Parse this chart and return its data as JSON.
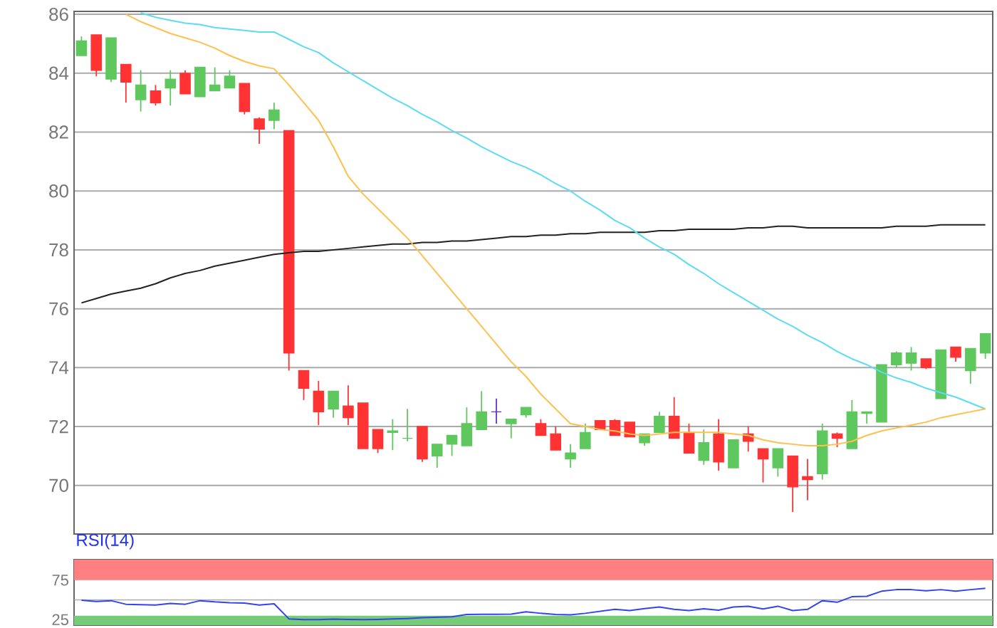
{
  "chart_data": [
    {
      "type": "candlestick",
      "categories": [
        null,
        null,
        null,
        null,
        null,
        null,
        null,
        null,
        null,
        null,
        null,
        null,
        null,
        null,
        null,
        null,
        null,
        null,
        null,
        null,
        null,
        null,
        null,
        null,
        null,
        null,
        null,
        null,
        null,
        null,
        null,
        null,
        null,
        null,
        null,
        null,
        null,
        null,
        null,
        null,
        null,
        null,
        null,
        null,
        null,
        null,
        null,
        null,
        null,
        null,
        null,
        null,
        null,
        null,
        null,
        null,
        null,
        null,
        null,
        null,
        null,
        null
      ],
      "ohlc": [
        [
          84.6,
          85.25,
          84.6,
          85.1
        ],
        [
          85.3,
          85.3,
          83.9,
          84.1
        ],
        [
          83.8,
          85.2,
          83.7,
          85.2
        ],
        [
          84.3,
          84.3,
          83.0,
          83.7
        ],
        [
          83.1,
          84.1,
          82.7,
          83.6
        ],
        [
          83.4,
          83.6,
          82.9,
          83.0
        ],
        [
          83.5,
          84.1,
          82.9,
          83.8
        ],
        [
          84.0,
          84.1,
          83.3,
          83.3
        ],
        [
          83.2,
          84.2,
          83.2,
          84.2
        ],
        [
          83.4,
          84.2,
          83.4,
          83.6
        ],
        [
          83.5,
          84.1,
          83.5,
          83.9
        ],
        [
          83.65,
          83.65,
          82.6,
          82.7
        ],
        [
          82.45,
          82.5,
          81.6,
          82.1
        ],
        [
          82.4,
          83.0,
          82.1,
          82.75
        ],
        [
          82.05,
          82.05,
          73.9,
          74.5
        ],
        [
          73.9,
          73.9,
          72.9,
          73.3
        ],
        [
          73.2,
          73.55,
          72.05,
          72.5
        ],
        [
          72.6,
          73.2,
          72.3,
          73.2
        ],
        [
          72.7,
          73.4,
          72.05,
          72.3
        ],
        [
          72.8,
          72.8,
          71.25,
          71.25
        ],
        [
          71.9,
          71.9,
          71.1,
          71.25
        ],
        [
          71.8,
          72.25,
          71.2,
          71.85
        ],
        [
          71.6,
          72.6,
          71.5,
          71.6
        ],
        [
          72.0,
          72.0,
          70.8,
          70.9
        ],
        [
          71.0,
          71.4,
          70.6,
          71.4
        ],
        [
          71.4,
          71.7,
          71.0,
          71.7
        ],
        [
          71.35,
          72.65,
          71.35,
          72.1
        ],
        [
          71.9,
          73.2,
          71.9,
          72.5
        ],
        [
          72.5,
          72.95,
          72.1,
          72.5
        ],
        [
          72.1,
          72.25,
          71.6,
          72.25
        ],
        [
          72.4,
          72.65,
          72.3,
          72.65
        ],
        [
          72.1,
          72.25,
          71.7,
          71.7
        ],
        [
          71.75,
          72.0,
          71.2,
          71.2
        ],
        [
          70.9,
          71.4,
          70.6,
          71.1
        ],
        [
          71.25,
          72.1,
          71.25,
          71.8
        ],
        [
          72.2,
          72.2,
          71.9,
          71.9
        ],
        [
          72.2,
          72.25,
          71.7,
          71.7
        ],
        [
          72.15,
          72.15,
          71.65,
          71.65
        ],
        [
          71.45,
          71.75,
          71.35,
          71.75
        ],
        [
          71.8,
          72.5,
          71.8,
          72.35
        ],
        [
          72.35,
          73.0,
          71.6,
          71.6
        ],
        [
          71.8,
          72.1,
          71.1,
          71.1
        ],
        [
          70.85,
          71.9,
          70.7,
          71.45
        ],
        [
          71.75,
          72.25,
          70.5,
          70.8
        ],
        [
          70.6,
          71.55,
          70.6,
          71.55
        ],
        [
          71.75,
          72.0,
          71.15,
          71.5
        ],
        [
          71.25,
          71.25,
          70.1,
          70.9
        ],
        [
          70.6,
          71.25,
          70.3,
          71.25
        ],
        [
          71.0,
          71.0,
          69.1,
          69.95
        ],
        [
          70.3,
          70.9,
          69.5,
          70.2
        ],
        [
          70.4,
          72.1,
          70.2,
          71.85
        ],
        [
          71.75,
          71.8,
          71.3,
          71.6
        ],
        [
          71.25,
          72.9,
          71.25,
          72.5
        ],
        [
          72.45,
          72.5,
          72.1,
          72.5
        ],
        [
          72.15,
          74.1,
          72.15,
          74.1
        ],
        [
          74.1,
          74.55,
          74.0,
          74.5
        ],
        [
          74.15,
          74.7,
          73.9,
          74.5
        ],
        [
          74.3,
          74.3,
          73.95,
          74.0
        ],
        [
          72.95,
          74.6,
          72.95,
          74.6
        ],
        [
          74.7,
          74.7,
          74.2,
          74.35
        ],
        [
          73.9,
          74.65,
          73.45,
          74.65
        ],
        [
          74.5,
          75.15,
          74.3,
          75.15
        ]
      ],
      "colors": [
        "#5ec85e",
        "#ff3333",
        "#5ec85e",
        "#ff3333",
        "#5ec85e",
        "#ff3333",
        "#5ec85e",
        "#ff3333",
        "#5ec85e",
        "#5ec85e",
        "#5ec85e",
        "#ff3333",
        "#ff3333",
        "#5ec85e",
        "#ff3333",
        "#ff3333",
        "#ff3333",
        "#5ec85e",
        "#ff3333",
        "#ff3333",
        "#ff3333",
        "#5ec85e",
        "#5ec85e",
        "#ff3333",
        "#5ec85e",
        "#5ec85e",
        "#5ec85e",
        "#5ec85e",
        "#6633cc",
        "#5ec85e",
        "#5ec85e",
        "#ff3333",
        "#ff3333",
        "#5ec85e",
        "#5ec85e",
        "#ff3333",
        "#ff3333",
        "#ff3333",
        "#5ec85e",
        "#5ec85e",
        "#ff3333",
        "#ff3333",
        "#5ec85e",
        "#ff3333",
        "#5ec85e",
        "#ff3333",
        "#ff3333",
        "#5ec85e",
        "#ff3333",
        "#ff3333",
        "#5ec85e",
        "#ff3333",
        "#5ec85e",
        "#5ec85e",
        "#5ec85e",
        "#5ec85e",
        "#5ec85e",
        "#ff3333",
        "#5ec85e",
        "#ff3333",
        "#5ec85e",
        "#5ec85e"
      ],
      "series": [
        {
          "type": "line",
          "color": "#222222",
          "values": [
            76.2,
            76.35,
            76.5,
            76.6,
            76.7,
            76.85,
            77.05,
            77.2,
            77.3,
            77.45,
            77.55,
            77.65,
            77.75,
            77.85,
            77.9,
            77.95,
            77.95,
            78.0,
            78.05,
            78.1,
            78.15,
            78.2,
            78.2,
            78.25,
            78.25,
            78.3,
            78.3,
            78.35,
            78.4,
            78.45,
            78.45,
            78.5,
            78.5,
            78.55,
            78.55,
            78.6,
            78.6,
            78.6,
            78.6,
            78.65,
            78.65,
            78.7,
            78.7,
            78.7,
            78.7,
            78.75,
            78.75,
            78.8,
            78.8,
            78.75,
            78.75,
            78.75,
            78.75,
            78.75,
            78.75,
            78.8,
            78.8,
            78.8,
            78.85,
            78.85,
            78.85,
            78.85
          ]
        },
        {
          "type": "line",
          "color": "#5bdcf2",
          "values": [
            null,
            null,
            null,
            null,
            86.05,
            85.9,
            85.8,
            85.7,
            85.65,
            85.55,
            85.5,
            85.45,
            85.4,
            85.4,
            85.15,
            84.9,
            84.7,
            84.35,
            84.05,
            83.75,
            83.45,
            83.15,
            82.9,
            82.6,
            82.35,
            82.05,
            81.8,
            81.5,
            81.25,
            81.0,
            80.8,
            80.55,
            80.25,
            80.0,
            79.65,
            79.35,
            79.0,
            78.75,
            78.4,
            78.1,
            77.85,
            77.5,
            77.2,
            76.85,
            76.55,
            76.25,
            75.95,
            75.65,
            75.4,
            75.1,
            74.85,
            74.55,
            74.3,
            74.1,
            73.85,
            73.65,
            73.5,
            73.3,
            73.15,
            73.0,
            72.8,
            72.6
          ]
        },
        {
          "type": "line",
          "color": "#ffc04d",
          "values": [
            null,
            null,
            null,
            86.0,
            85.75,
            85.55,
            85.35,
            85.2,
            85.05,
            84.85,
            84.6,
            84.4,
            84.25,
            84.15,
            83.6,
            83.0,
            82.4,
            81.5,
            80.5,
            79.9,
            79.4,
            78.9,
            78.4,
            77.8,
            77.2,
            76.6,
            76.0,
            75.4,
            74.8,
            74.2,
            73.7,
            73.1,
            72.6,
            72.1,
            72.0,
            71.9,
            71.85,
            71.75,
            71.7,
            71.75,
            71.8,
            71.8,
            71.8,
            71.8,
            71.75,
            71.7,
            71.55,
            71.45,
            71.4,
            71.35,
            71.35,
            71.4,
            71.5,
            71.7,
            71.85,
            71.95,
            72.05,
            72.15,
            72.3,
            72.4,
            72.5,
            72.6
          ]
        }
      ],
      "ylim": [
        68.35,
        86.1
      ],
      "yticks": [
        70,
        72,
        74,
        76,
        78,
        80,
        82,
        84,
        86
      ],
      "grid": "y",
      "tick_labels": "y"
    },
    {
      "type": "line",
      "title": "RSI(14)",
      "categories": [
        null,
        null,
        null,
        null,
        null,
        null,
        null,
        null,
        null,
        null,
        null,
        null,
        null,
        null,
        null,
        null,
        null,
        null,
        null,
        null,
        null,
        null,
        null,
        null,
        null,
        null,
        null,
        null,
        null,
        null,
        null,
        null,
        null,
        null,
        null,
        null,
        null,
        null,
        null,
        null,
        null,
        null,
        null,
        null,
        null,
        null,
        null,
        null,
        null,
        null,
        null,
        null,
        null,
        null,
        null,
        null,
        null,
        null,
        null,
        null,
        null,
        null
      ],
      "series": [
        {
          "color": "#3344ee",
          "values": [
            49.6,
            48,
            49,
            44.5,
            44,
            43.5,
            45.5,
            44.5,
            49,
            47.5,
            46.5,
            46,
            43.5,
            45,
            26,
            25,
            25,
            25.6,
            25.3,
            25,
            25.3,
            25.8,
            26.4,
            27.4,
            28,
            28.6,
            31.5,
            31.7,
            31.7,
            32,
            35,
            33,
            31.5,
            31,
            33,
            35.5,
            38,
            36.5,
            39,
            41,
            38,
            36.5,
            38.8,
            37,
            41,
            42,
            38.5,
            42,
            36.5,
            38,
            49,
            47,
            54,
            54.5,
            61,
            63,
            63,
            61.5,
            63,
            61,
            63,
            64.7
          ]
        }
      ],
      "ylim": [
        18,
        101
      ],
      "yticks": [
        25,
        75
      ],
      "tick_labels": "y",
      "ref_lines": [
        {
          "axis": "y",
          "value": 50,
          "color": "#aaaaaa"
        }
      ],
      "bands": [
        {
          "axis": "y",
          "from": 75,
          "to": 101,
          "color": "#ff8080"
        },
        {
          "axis": "y",
          "from": 18,
          "to": 30,
          "color": "#77cc77"
        }
      ]
    }
  ]
}
